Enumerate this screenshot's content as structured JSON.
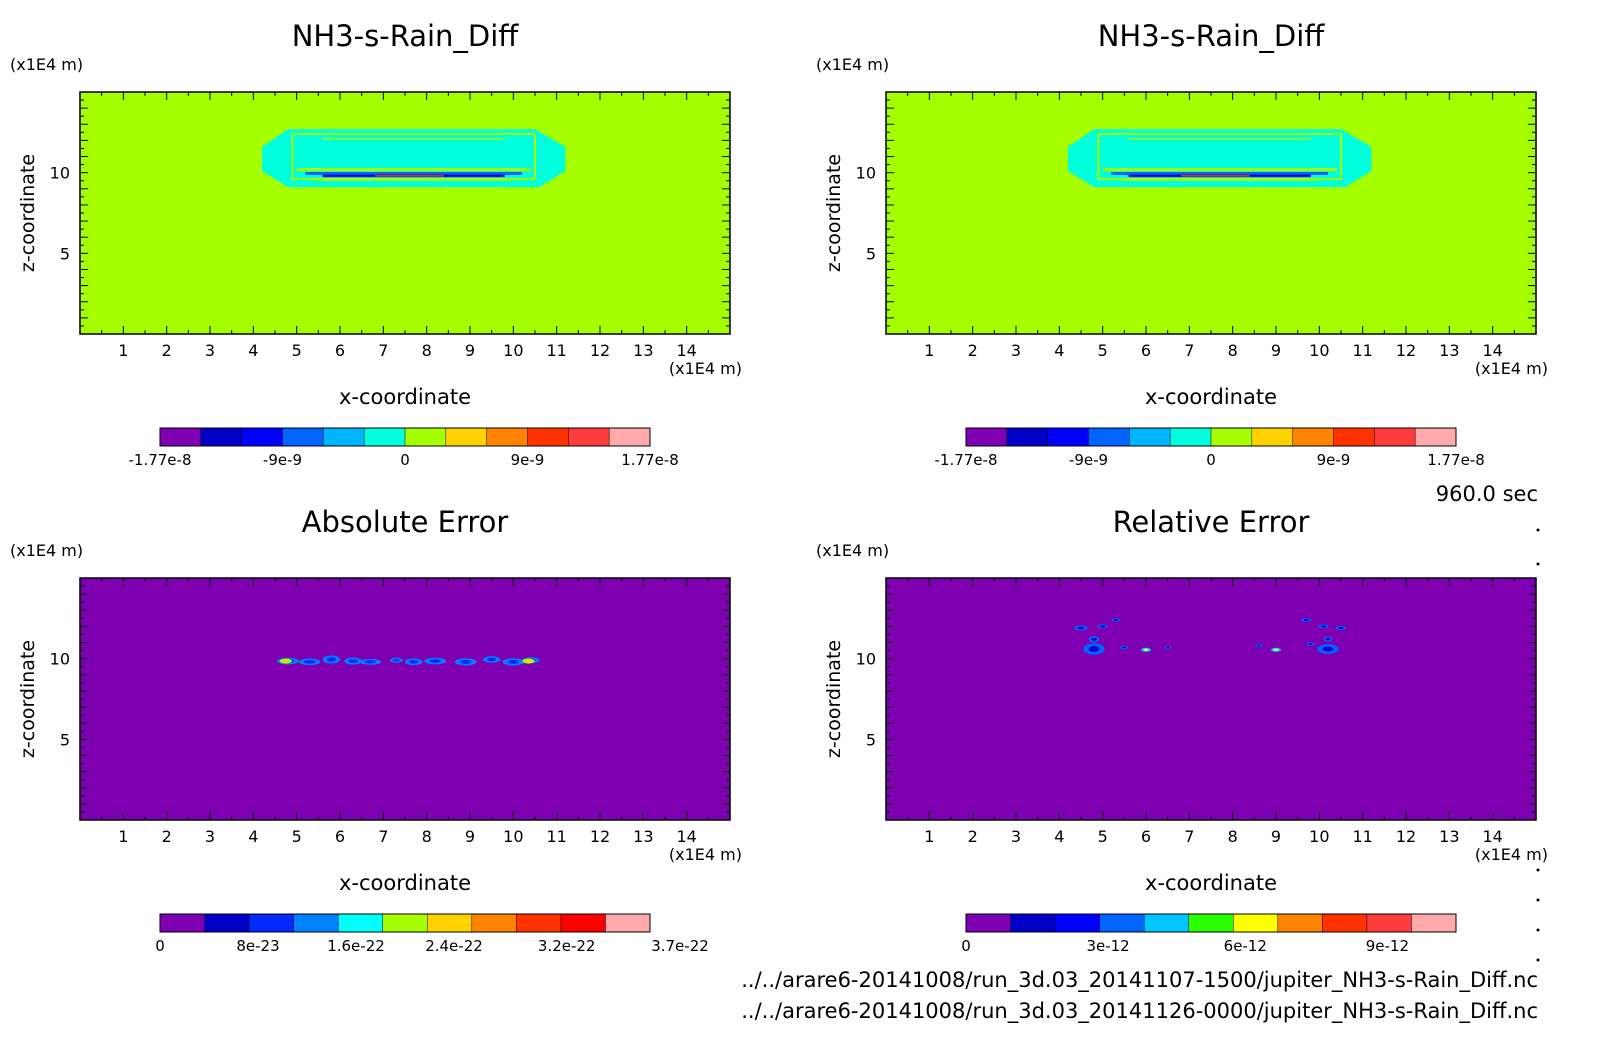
{
  "time_label": "960.0 sec",
  "files": [
    "../../arare6-20141008/run_3d.03_20141107-1500/jupiter_NH3-s-Rain_Diff.nc",
    "../../arare6-20141008/run_3d.03_20141126-0000/jupiter_NH3-s-Rain_Diff.nc"
  ],
  "colors": {
    "background_field": "#a6ff00",
    "error_field": "#7f00b2"
  },
  "chart_data": [
    {
      "type": "heatmap",
      "title": "NH3-s-Rain_Diff",
      "xlabel": "x-coordinate",
      "ylabel": "z-coordinate",
      "x_unit": "(x1E4 m)",
      "y_unit": "(x1E4 m)",
      "xticks": [
        "1",
        "2",
        "3",
        "4",
        "5",
        "6",
        "7",
        "8",
        "9",
        "10",
        "11",
        "12",
        "13",
        "14"
      ],
      "yticks": [
        "5",
        "10"
      ],
      "xlim": [
        0,
        15
      ],
      "ylim": [
        0,
        15
      ],
      "field": "diff",
      "colorbar": {
        "labels": [
          "-1.77e-8",
          "-9e-9",
          "0",
          "9e-9",
          "1.77e-8"
        ],
        "colors": [
          "#7f00b2",
          "#0000c8",
          "#0000ff",
          "#0064ff",
          "#00b4ff",
          "#00ffdc",
          "#a6ff00",
          "#ffd200",
          "#ff8200",
          "#ff3200",
          "#ff3c3c",
          "#ffaaaa"
        ]
      }
    },
    {
      "type": "heatmap",
      "title": "NH3-s-Rain_Diff",
      "xlabel": "x-coordinate",
      "ylabel": "z-coordinate",
      "x_unit": "(x1E4 m)",
      "y_unit": "(x1E4 m)",
      "xticks": [
        "1",
        "2",
        "3",
        "4",
        "5",
        "6",
        "7",
        "8",
        "9",
        "10",
        "11",
        "12",
        "13",
        "14"
      ],
      "yticks": [
        "5",
        "10"
      ],
      "xlim": [
        0,
        15
      ],
      "ylim": [
        0,
        15
      ],
      "field": "diff",
      "colorbar": {
        "labels": [
          "-1.77e-8",
          "-9e-9",
          "0",
          "9e-9",
          "1.77e-8"
        ],
        "colors": [
          "#7f00b2",
          "#0000c8",
          "#0000ff",
          "#0064ff",
          "#00b4ff",
          "#00ffdc",
          "#a6ff00",
          "#ffd200",
          "#ff8200",
          "#ff3200",
          "#ff3c3c",
          "#ffaaaa"
        ]
      }
    },
    {
      "type": "heatmap",
      "title": "Absolute Error",
      "xlabel": "x-coordinate",
      "ylabel": "z-coordinate",
      "x_unit": "(x1E4 m)",
      "y_unit": "(x1E4 m)",
      "xticks": [
        "1",
        "2",
        "3",
        "4",
        "5",
        "6",
        "7",
        "8",
        "9",
        "10",
        "11",
        "12",
        "13",
        "14"
      ],
      "yticks": [
        "5",
        "10"
      ],
      "xlim": [
        0,
        15
      ],
      "ylim": [
        0,
        15
      ],
      "field": "abs",
      "colorbar": {
        "labels": [
          "0",
          "8e-23",
          "1.6e-22",
          "2.4e-22",
          "3.2e-22",
          "3.7e-22"
        ],
        "colors": [
          "#7f00b2",
          "#0000c8",
          "#0028ff",
          "#0082ff",
          "#00ffff",
          "#a6ff00",
          "#ffd200",
          "#ff8200",
          "#ff3200",
          "#ff0000",
          "#ffaaaa"
        ]
      }
    },
    {
      "type": "heatmap",
      "title": "Relative Error",
      "xlabel": "x-coordinate",
      "ylabel": "z-coordinate",
      "x_unit": "(x1E4 m)",
      "y_unit": "(x1E4 m)",
      "xticks": [
        "1",
        "2",
        "3",
        "4",
        "5",
        "6",
        "7",
        "8",
        "9",
        "10",
        "11",
        "12",
        "13",
        "14"
      ],
      "yticks": [
        "5",
        "10"
      ],
      "xlim": [
        0,
        15
      ],
      "ylim": [
        0,
        15
      ],
      "field": "rel",
      "colorbar": {
        "labels": [
          "0",
          "3e-12",
          "6e-12",
          "9e-12"
        ],
        "colors": [
          "#7f00b2",
          "#0000c8",
          "#0000ff",
          "#0064ff",
          "#00c8ff",
          "#28ff00",
          "#ffff00",
          "#ff8200",
          "#ff3200",
          "#ff3c3c",
          "#ffaaaa"
        ]
      }
    }
  ]
}
